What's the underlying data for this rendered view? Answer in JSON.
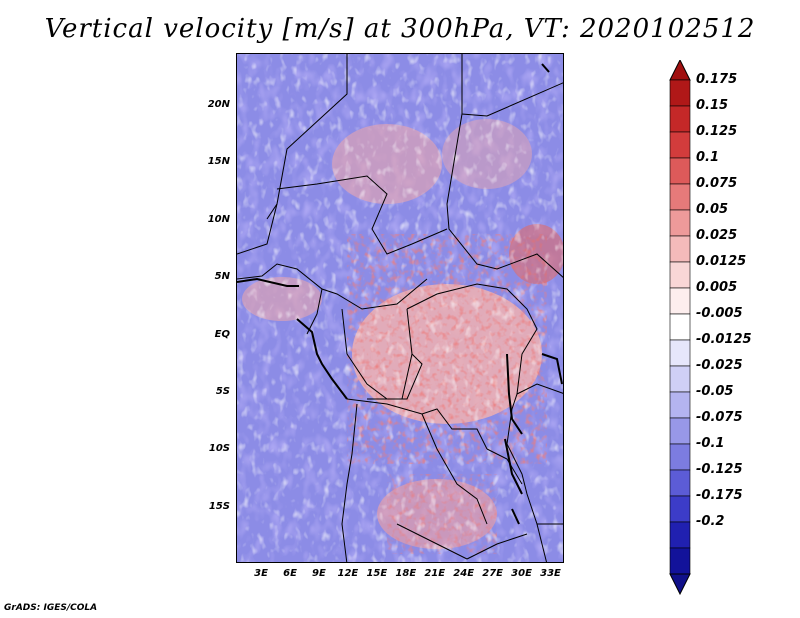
{
  "title": "Vertical velocity [m/s] at 300hPa, VT: 2020102512",
  "footer": "GrADS: IGES/COLA",
  "map": {
    "lat_labels": [
      "20N",
      "15N",
      "10N",
      "5N",
      "EQ",
      "5S",
      "10S",
      "15S"
    ],
    "lon_labels": [
      "3E",
      "6E",
      "9E",
      "12E",
      "15E",
      "18E",
      "21E",
      "24E",
      "27E",
      "30E",
      "33E"
    ],
    "lat_values": [
      20,
      15,
      10,
      5,
      0,
      -5,
      -10,
      -15
    ],
    "lon_values": [
      3,
      6,
      9,
      12,
      15,
      18,
      21,
      24,
      27,
      30,
      33
    ],
    "lat_range": [
      -19.8,
      24.6
    ],
    "lon_range": [
      0.4,
      34.4
    ]
  },
  "colorbar": {
    "labels": [
      "0.175",
      "0.15",
      "0.125",
      "0.1",
      "0.075",
      "0.05",
      "0.025",
      "0.0125",
      "0.005",
      "-0.005",
      "-0.0125",
      "-0.025",
      "-0.05",
      "-0.075",
      "-0.1",
      "-0.125",
      "-0.175",
      "-0.2"
    ],
    "colors": [
      "#b01818",
      "#c42828",
      "#d23c3c",
      "#dd5a5a",
      "#e67a7a",
      "#ee9a9a",
      "#f4baba",
      "#f9d6d6",
      "#fdeeee",
      "#ffffff",
      "#e6e6fb",
      "#cfcff6",
      "#b4b4f0",
      "#9898e8",
      "#7c7ce0",
      "#5c5cd6",
      "#3c3cc8",
      "#2020b0",
      "#12129a"
    ],
    "top_cap_color": "#a01010",
    "bottom_cap_color": "#10108a"
  }
}
